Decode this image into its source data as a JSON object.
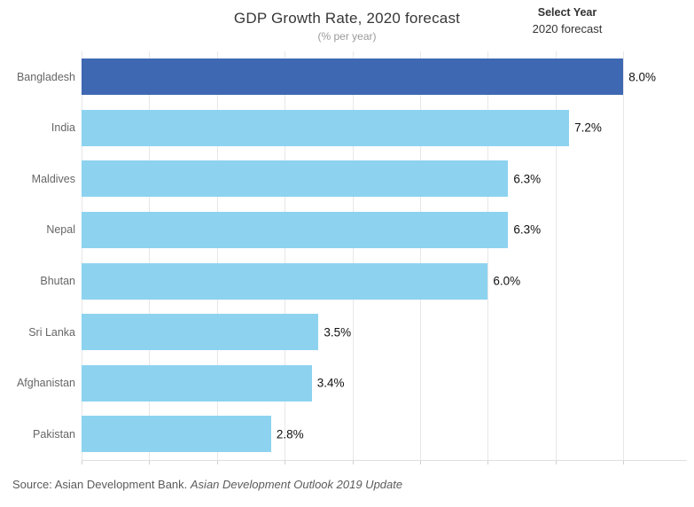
{
  "controls": {
    "year_selector_label": "Select Year",
    "year_selector_value": "2020 forecast"
  },
  "source": {
    "prefix": "Source: Asian Development Bank. ",
    "publication": "Asian Development Outlook 2019 Update"
  },
  "colors": {
    "highlight_bar": "#3E68B2",
    "bar": "#8DD3F0",
    "gridline": "#e7e7e7",
    "axis_line": "#e0e0e0",
    "axis_tick": "#d0d0d0",
    "category_label": "#666666",
    "value_label": "#111111",
    "title": "#373737",
    "subtitle": "#9a9a9a",
    "source_text": "#5b5b5b",
    "background": "#ffffff"
  },
  "chart_data": {
    "type": "bar",
    "orientation": "horizontal",
    "title": "GDP Growth Rate, 2020 forecast",
    "subtitle": "(% per year)",
    "categories": [
      "Bangladesh",
      "India",
      "Maldives",
      "Nepal",
      "Bhutan",
      "Sri Lanka",
      "Afghanistan",
      "Pakistan"
    ],
    "values": [
      8.0,
      7.2,
      6.3,
      6.3,
      6.0,
      3.5,
      3.4,
      2.8
    ],
    "value_labels": [
      "8.0%",
      "7.2%",
      "6.3%",
      "6.3%",
      "6.0%",
      "3.5%",
      "3.4%",
      "2.8%"
    ],
    "highlighted_index": 0,
    "xlabel": "",
    "ylabel": "",
    "unit": "% per year",
    "xlim": [
      0,
      8.94
    ],
    "gridlines": [
      0,
      1,
      2,
      3,
      4,
      5,
      6,
      7,
      8
    ],
    "grid": "vertical",
    "legend": "none",
    "value_labels_position": "outside-end",
    "sorted": "descending"
  }
}
